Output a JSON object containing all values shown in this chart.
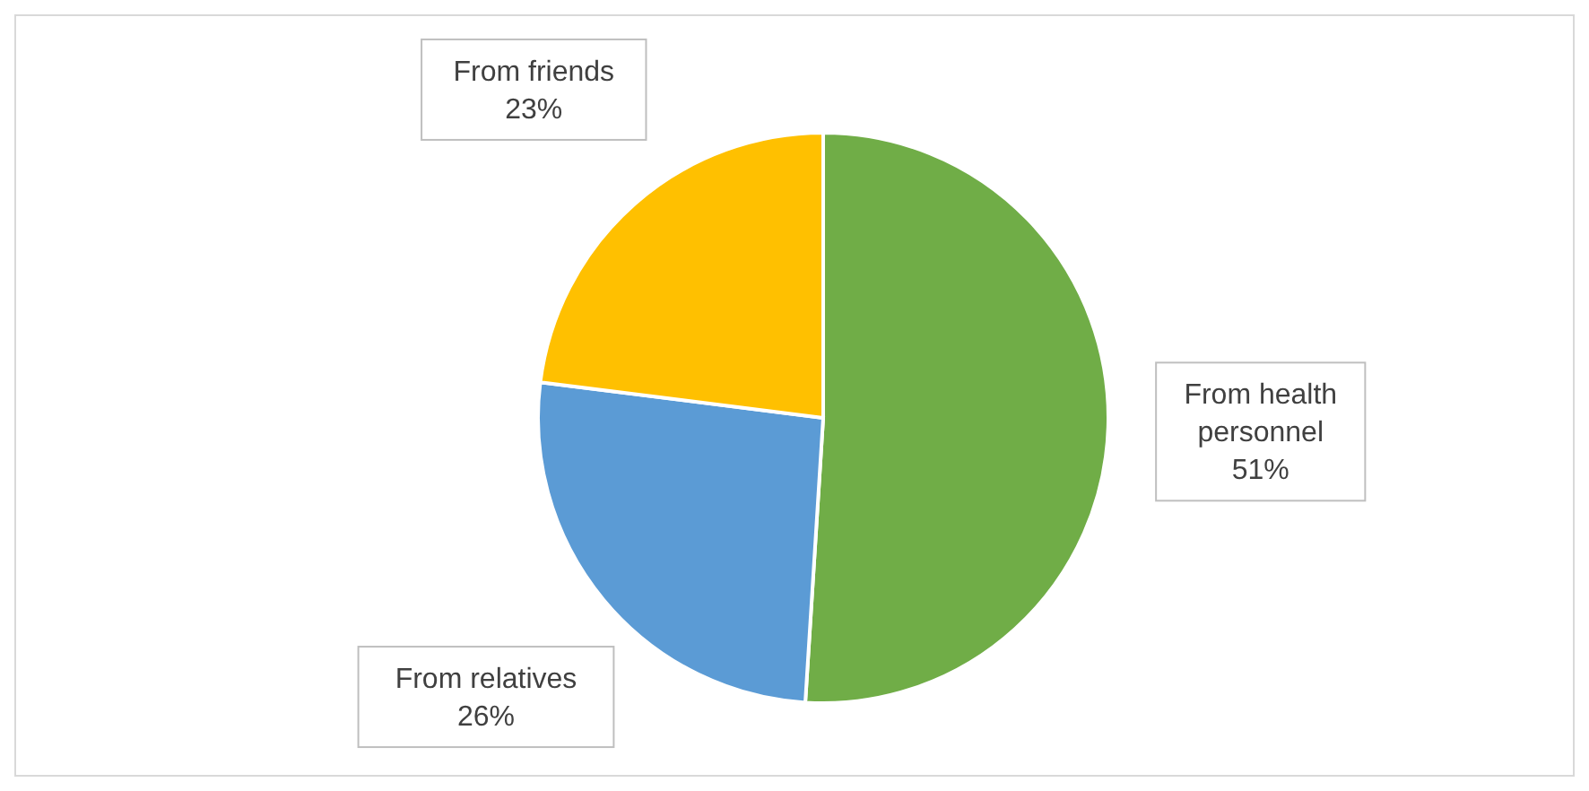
{
  "chart_data": {
    "type": "pie",
    "categories": [
      "From health personnel",
      "From relatives",
      "From friends"
    ],
    "values": [
      51,
      26,
      23
    ],
    "colors": [
      "#70ad47",
      "#5b9bd5",
      "#ffc000"
    ],
    "value_labels": [
      "51%",
      "26%",
      "23%"
    ]
  }
}
